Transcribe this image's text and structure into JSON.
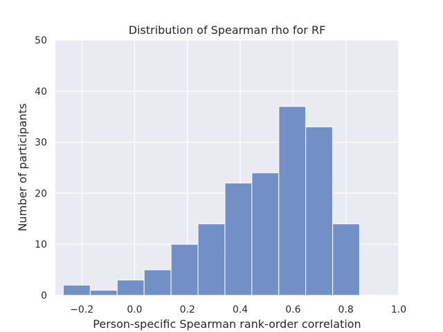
{
  "chart_data": {
    "type": "bar",
    "title": "Distribution of Spearman rho for RF",
    "xlabel": "Person-specific Spearman rank-order correlation",
    "ylabel": "Number of participants",
    "xlim": [
      -0.3,
      1.0
    ],
    "ylim": [
      0,
      50
    ],
    "x_ticks": [
      -0.2,
      0.0,
      0.2,
      0.4,
      0.6,
      0.8,
      1.0
    ],
    "x_tick_labels": [
      "−0.2",
      "0.0",
      "0.2",
      "0.4",
      "0.6",
      "0.8",
      "1.0"
    ],
    "y_ticks": [
      0,
      10,
      20,
      30,
      40,
      50
    ],
    "y_tick_labels": [
      "0",
      "10",
      "20",
      "30",
      "40",
      "50"
    ],
    "bins": [
      {
        "x0": -0.27,
        "x1": -0.168,
        "count": 2
      },
      {
        "x0": -0.168,
        "x1": -0.066,
        "count": 1
      },
      {
        "x0": -0.066,
        "x1": 0.036,
        "count": 3
      },
      {
        "x0": 0.036,
        "x1": 0.138,
        "count": 5
      },
      {
        "x0": 0.138,
        "x1": 0.24,
        "count": 10
      },
      {
        "x0": 0.24,
        "x1": 0.342,
        "count": 14
      },
      {
        "x0": 0.342,
        "x1": 0.444,
        "count": 22
      },
      {
        "x0": 0.444,
        "x1": 0.546,
        "count": 24
      },
      {
        "x0": 0.546,
        "x1": 0.648,
        "count": 37
      },
      {
        "x0": 0.648,
        "x1": 0.75,
        "count": 33
      },
      {
        "x0": 0.75,
        "x1": 0.852,
        "count": 14
      }
    ],
    "grid": true,
    "colors": {
      "background": "#eaeaf2",
      "grid": "#ffffff",
      "bar_fill": "#6b8bc2",
      "bar_edge": "#ffffff",
      "text": "#262626"
    }
  }
}
